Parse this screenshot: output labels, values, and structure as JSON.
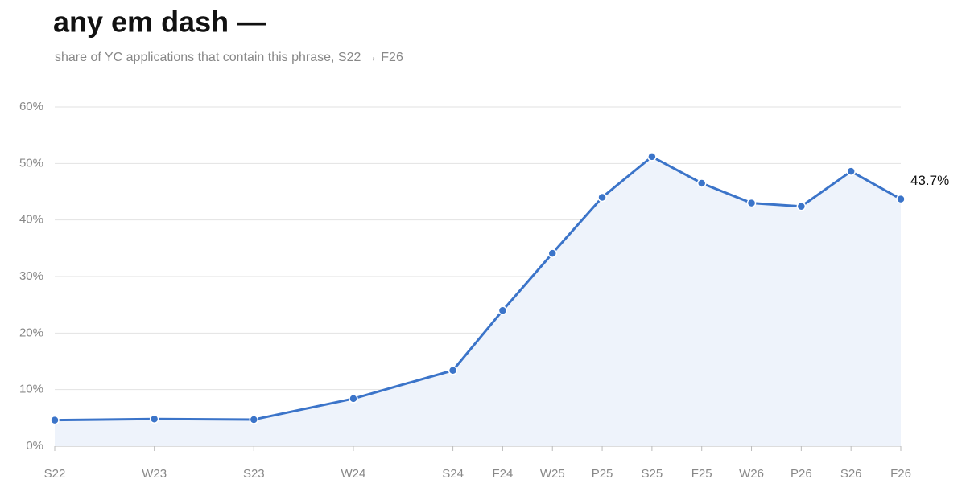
{
  "chart_data": {
    "type": "line",
    "title": "any em dash —",
    "subtitle": "share of YC applications that contain this phrase, S22 → F26",
    "categories": [
      "S22",
      "W23",
      "S23",
      "W24",
      "S24",
      "F24",
      "W25",
      "P25",
      "S25",
      "F25",
      "W26",
      "P26",
      "S26",
      "F26"
    ],
    "series": [
      {
        "name": "any em dash",
        "color": "#3b74c9",
        "values": [
          4.6,
          4.8,
          4.7,
          8.4,
          13.4,
          24.0,
          34.1,
          44.0,
          51.2,
          46.5,
          43.0,
          42.4,
          48.6,
          43.7
        ],
        "value_labels": [
          null,
          null,
          null,
          null,
          null,
          null,
          null,
          null,
          null,
          null,
          null,
          null,
          null,
          "43.7%"
        ]
      }
    ],
    "ylim": [
      0,
      60
    ],
    "yticks": [
      {
        "value": 0,
        "label": "0%"
      },
      {
        "value": 10,
        "label": "10%"
      },
      {
        "value": 20,
        "label": "20%"
      },
      {
        "value": 30,
        "label": "30%"
      },
      {
        "value": 40,
        "label": "40%"
      },
      {
        "value": 50,
        "label": "50%"
      },
      {
        "value": 60,
        "label": "60%"
      }
    ],
    "grid": true,
    "area": true
  }
}
